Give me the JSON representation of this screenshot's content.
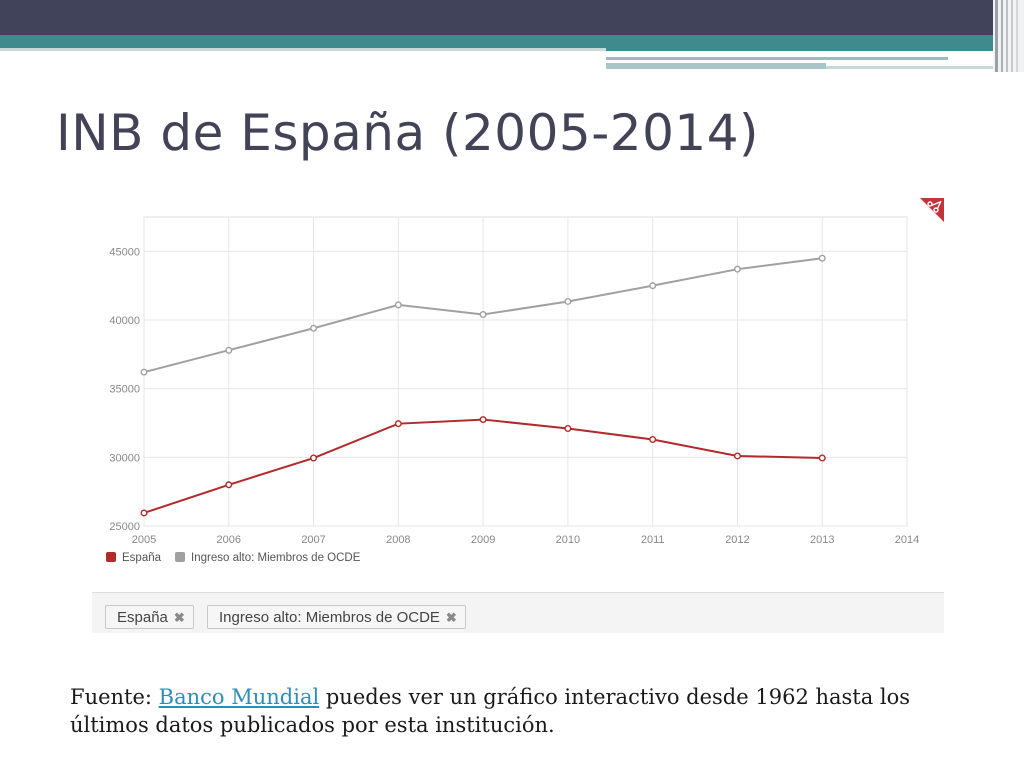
{
  "slide": {
    "title": "INB de España (2005-2014)"
  },
  "colors": {
    "header_dark": "#40435a",
    "header_teal": "#3f8a8c",
    "title": "#434358",
    "espana": "#b32a2a",
    "ocde": "#a0a0a0",
    "link": "#2e8db8"
  },
  "chart_data": {
    "type": "line",
    "x": [
      2005,
      2006,
      2007,
      2008,
      2009,
      2010,
      2011,
      2012,
      2013
    ],
    "x_ticks": [
      "2005",
      "2006",
      "2007",
      "2008",
      "2009",
      "2010",
      "2011",
      "2012",
      "2013",
      "2014"
    ],
    "xlim": [
      2005,
      2014
    ],
    "ylim": [
      25000,
      47500
    ],
    "y_ticks": [
      "25000",
      "30000",
      "35000",
      "40000",
      "45000"
    ],
    "grid": true,
    "legend_position": "bottom-left",
    "series": [
      {
        "name": "España",
        "color": "#b32a2a",
        "values": [
          25950,
          28000,
          29950,
          32450,
          32750,
          32100,
          31300,
          30100,
          29950
        ]
      },
      {
        "name": "Ingreso alto: Miembros de OCDE",
        "color": "#a0a0a0",
        "values": [
          36200,
          37800,
          39400,
          41100,
          40400,
          41350,
          42500,
          43700,
          44500
        ]
      }
    ]
  },
  "filters": [
    {
      "label": "España",
      "remove_icon": "close-icon"
    },
    {
      "label": "Ingreso alto: Miembros de OCDE",
      "remove_icon": "close-icon"
    }
  ],
  "export_icon": "scissors-icon",
  "footer": {
    "prefix": "Fuente: ",
    "link_text": "Banco Mundial",
    "suffix": " puedes ver un gráfico interactivo desde 1962 hasta los últimos datos publicados por esta institución."
  }
}
